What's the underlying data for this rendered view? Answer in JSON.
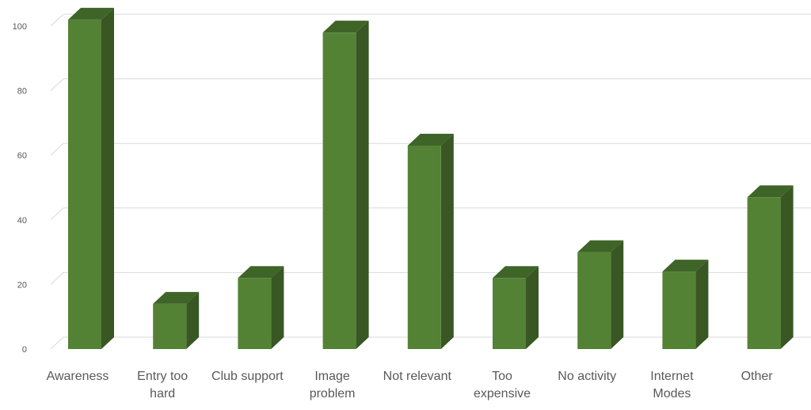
{
  "chart_data": {
    "type": "bar",
    "style": "3d-column",
    "categories": [
      "Awareness",
      "Entry too hard",
      "Club support",
      "Image problem",
      "Not relevant",
      "Too expensive",
      "No activity",
      "Internet Modes",
      "Other"
    ],
    "category_lines": [
      [
        "Awareness"
      ],
      [
        "Entry too",
        "hard"
      ],
      [
        "Club support"
      ],
      [
        "Image",
        "problem"
      ],
      [
        "Not relevant"
      ],
      [
        "Too",
        "expensive"
      ],
      [
        "No activity"
      ],
      [
        "Internet",
        "Modes"
      ],
      [
        "Other"
      ]
    ],
    "values": [
      102,
      14,
      22,
      98,
      63,
      22,
      30,
      24,
      47
    ],
    "title": "",
    "xlabel": "",
    "ylabel": "",
    "ylim": [
      0,
      100
    ],
    "yticks": [
      0,
      20,
      40,
      60,
      80,
      100
    ],
    "grid": true,
    "legend": "none",
    "colors": {
      "bar_front": "#548235",
      "bar_side": "#385723",
      "bar_top": "#3f6428",
      "gridline": "#d9d9d9",
      "text": "#595959"
    }
  }
}
